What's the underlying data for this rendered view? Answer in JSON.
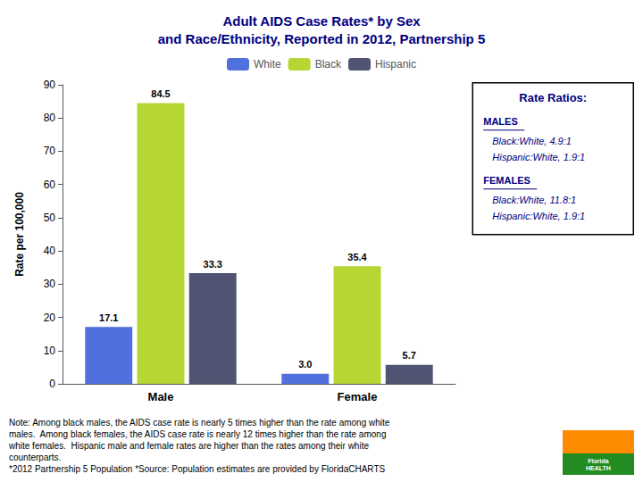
{
  "chart_data": {
    "type": "bar",
    "title": "Adult AIDS Case Rates* by Sex\nand Race/Ethnicity, Reported in 2012, Partnership 5",
    "ylabel": "Rate per 100,000",
    "categories": [
      "Male",
      "Female"
    ],
    "series": [
      {
        "name": "White",
        "values": [
          17.1,
          3.0
        ],
        "value_labels": [
          "17.1",
          "3.0"
        ]
      },
      {
        "name": "Black",
        "values": [
          84.5,
          35.4
        ],
        "value_labels": [
          "84.5",
          "35.4"
        ]
      },
      {
        "name": "Hispanic",
        "values": [
          33.3,
          5.7
        ],
        "value_labels": [
          "33.3",
          "5.7"
        ]
      }
    ],
    "ylim": [
      0,
      90
    ],
    "yticks": [
      0,
      10,
      20,
      30,
      40,
      50,
      60,
      70,
      80,
      90
    ],
    "grid": false,
    "legend": "top",
    "data_labels": true,
    "annotations": [
      "Rate Ratios:",
      "MALES",
      "Black:White, 4.9:1",
      "Hispanic:White, 1.9:1",
      "FEMALES",
      "Black:White, 11.8:1",
      "Hispanic:White, 1.9:1",
      "Note: Among black males, the AIDS case rate is nearly 5 times higher than the rate among white\nmales.  Among black females, the AIDS case rate is nearly 12 times higher than the rate among\nwhite females.  Hispanic male and female rates are higher than the rates among their white\ncounterparts.\n*2012 Partnership 5 Population *Source: Population estimates are provided by FloridaCHARTS",
      "Florida\nHEALTH"
    ]
  }
}
